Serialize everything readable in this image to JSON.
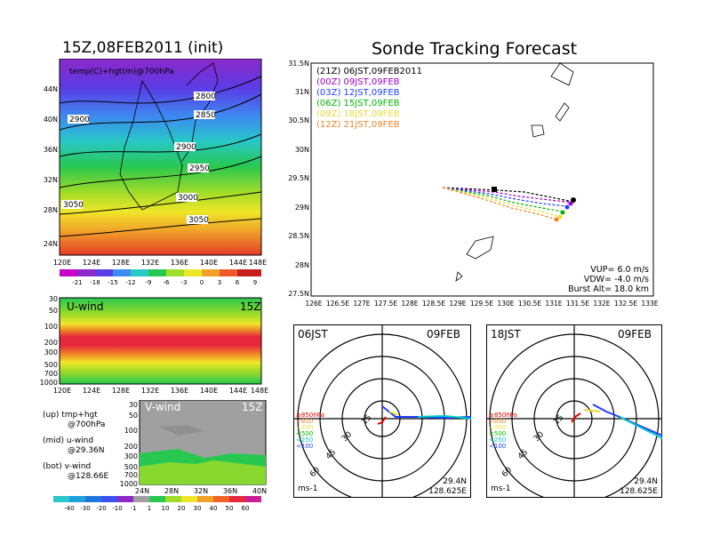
{
  "left": {
    "title": "15Z,08FEB2011 (init)",
    "map": {
      "label": "temp(C)+hgt(m)@700hPa",
      "lat_ticks": [
        "44N",
        "40N",
        "36N",
        "32N",
        "28N",
        "24N"
      ],
      "lon_ticks": [
        "120E",
        "124E",
        "128E",
        "132E",
        "136E",
        "140E",
        "144E",
        "148E"
      ],
      "contours": [
        "2800",
        "2850",
        "2900",
        "2900",
        "2950",
        "3000",
        "3050",
        "3050"
      ],
      "colorbar": [
        "-21",
        "-18",
        "-15",
        "-12",
        "-9",
        "-6",
        "-3",
        "0",
        "3",
        "6",
        "9"
      ]
    },
    "uwind": {
      "label": "U-wind",
      "time": "15Z",
      "p_ticks": [
        "30",
        "50",
        "100",
        "200",
        "300",
        "500",
        "700",
        "1000"
      ],
      "lon_ticks": [
        "120E",
        "124E",
        "128E",
        "132E",
        "136E",
        "140E",
        "144E",
        "148E"
      ]
    },
    "vwind": {
      "label": "V-wind",
      "time": "15Z",
      "p_ticks": [
        "30",
        "50",
        "100",
        "200",
        "300",
        "500",
        "700",
        "1000"
      ],
      "lat_ticks": [
        "24N",
        "28N",
        "32N",
        "36N",
        "40N"
      ],
      "colorbar": [
        "-40",
        "-30",
        "-20",
        "-10",
        "-1",
        "1",
        "10",
        "20",
        "30",
        "40",
        "50",
        "60"
      ]
    },
    "legend": {
      "up1": "(up) tmp+hgt",
      "up2": "@700hPa",
      "mid1": "(mid) u-wind",
      "mid2": "@29.36N",
      "bot1": "(bot) v-wind",
      "bot2": "@128.66E"
    }
  },
  "right": {
    "title": "Sonde Tracking Forecast",
    "track": {
      "lat_ticks": [
        "31.5N",
        "31N",
        "30.5N",
        "30N",
        "29.5N",
        "29N",
        "28.5N",
        "28N",
        "27.5N"
      ],
      "lon_ticks": [
        "126E",
        "126.5E",
        "127E",
        "127.5E",
        "128E",
        "128.5E",
        "129E",
        "129.5E",
        "130E",
        "130.5E",
        "131E",
        "131.5E",
        "132E",
        "132.5E",
        "133E"
      ],
      "legend": [
        {
          "text": "(21Z)  06JST,09FEB2011",
          "color": "#000000"
        },
        {
          "text": "(00Z)  09JST,09FEB",
          "color": "#a000c8"
        },
        {
          "text": "(03Z)  12JST,09FEB",
          "color": "#1e3cff"
        },
        {
          "text": "(06Z)  15JST,09FEB",
          "color": "#00b400"
        },
        {
          "text": "(09Z)  18JST,09FEB",
          "color": "#e6dc32"
        },
        {
          "text": "(12Z)  21JST,09FEB",
          "color": "#f08228"
        }
      ],
      "params": {
        "vup": "VUP=  6.0  m/s",
        "vdw": "VDW= -4.0  m/s",
        "burst": "Burst Alt=  18.0  km"
      }
    },
    "hodo1": {
      "time": "06JST",
      "date": "09FEB",
      "rings": [
        "15",
        "30",
        "45",
        "60"
      ],
      "levels": [
        "≥850hPa",
        "<850",
        "<700",
        "<500",
        "<250",
        "<100"
      ],
      "unit": "ms-1",
      "lat": "29.4N",
      "lon": "128.625E"
    },
    "hodo2": {
      "time": "18JST",
      "date": "09FEB",
      "rings": [
        "15",
        "30",
        "45",
        "60"
      ],
      "levels": [
        "≥850hPa",
        "<850",
        "<700",
        "<500",
        "<250",
        "<100"
      ],
      "unit": "ms-1",
      "lat": "29.4N",
      "lon": "128.625E"
    }
  },
  "colors": {
    "level_colors": [
      "#e60000",
      "#f08228",
      "#e6dc32",
      "#00b400",
      "#00c8c8",
      "#1e3cff"
    ]
  }
}
